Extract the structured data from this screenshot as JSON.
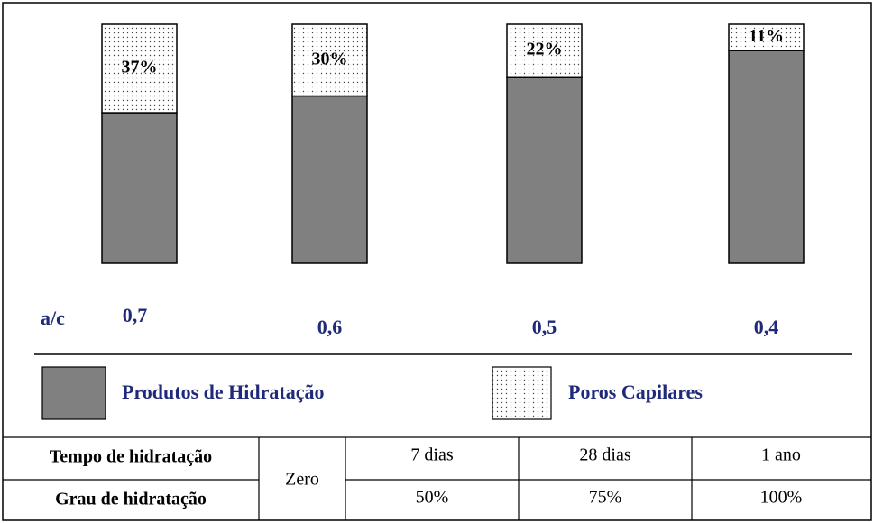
{
  "chart_data": {
    "type": "bar",
    "stacked": true,
    "x_label": "a/c",
    "categories": [
      "0,7",
      "0,6",
      "0,5",
      "0,4"
    ],
    "series": [
      {
        "name": "Produtos de Hidratação",
        "color": "#808080",
        "values": [
          63,
          70,
          78,
          89
        ]
      },
      {
        "name": "Poros Capilares",
        "color": "#ffffff",
        "pattern": "dots",
        "values": [
          37,
          30,
          22,
          11
        ],
        "value_labels": [
          "37%",
          "30%",
          "22%",
          "11%"
        ]
      }
    ],
    "ylim": [
      0,
      100
    ]
  },
  "table": {
    "rows": [
      [
        "Tempo de hidratação",
        "Zero",
        "7 dias",
        "28 dias",
        "1 ano"
      ],
      [
        "Grau de hidratação",
        "50%",
        "75%",
        "100%"
      ]
    ]
  }
}
